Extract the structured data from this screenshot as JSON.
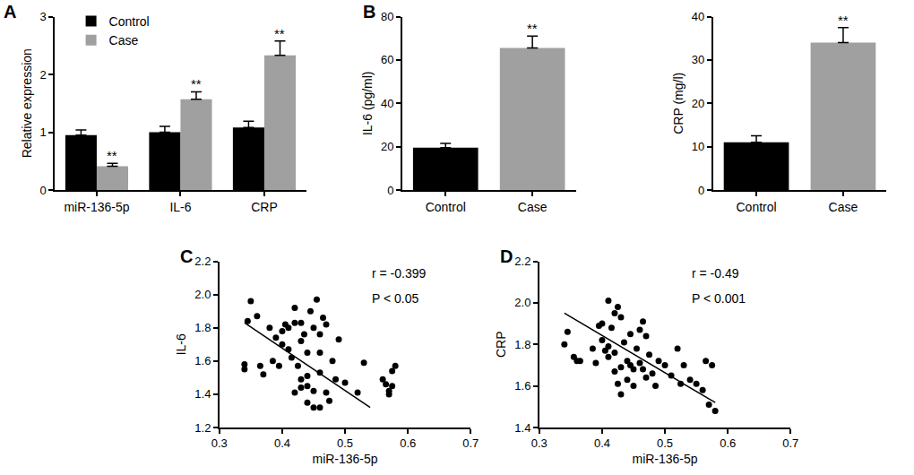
{
  "chart_data": [
    {
      "type": "bar",
      "panel": "A",
      "ylabel": "Relative expression",
      "categories": [
        "miR-136-5p",
        "IL-6",
        "CRP"
      ],
      "series": [
        {
          "name": "Control",
          "color": "#000000",
          "values": [
            0.95,
            1.0,
            1.08
          ],
          "errors": [
            0.09,
            0.1,
            0.11
          ]
        },
        {
          "name": "Case",
          "color": "#a0a0a0",
          "values": [
            0.41,
            1.57,
            2.33
          ],
          "errors": [
            0.05,
            0.13,
            0.25
          ]
        }
      ],
      "annotations": [
        {
          "category": "miR-136-5p",
          "series": "Case",
          "text": "**"
        },
        {
          "category": "IL-6",
          "series": "Case",
          "text": "**"
        },
        {
          "category": "CRP",
          "series": "Case",
          "text": "**"
        }
      ],
      "ylim": [
        0,
        3
      ],
      "yticks": [
        0,
        1,
        2,
        3
      ],
      "grid": false,
      "legend": "top left"
    },
    {
      "type": "bar",
      "panel": "B",
      "ylabel": "IL-6 (pg/ml)",
      "categories": [
        "Control",
        "Case"
      ],
      "values": [
        19.5,
        65.5
      ],
      "errors": [
        2,
        5.5
      ],
      "colors": [
        "#000000",
        "#a0a0a0"
      ],
      "annotations": [
        {
          "category": "Case",
          "text": "**"
        }
      ],
      "ylim": [
        0,
        80
      ],
      "yticks": [
        0,
        20,
        40,
        60,
        80
      ],
      "grid": false
    },
    {
      "type": "bar",
      "ylabel": "CRP (mg/l)",
      "categories": [
        "Control",
        "Case"
      ],
      "values": [
        11,
        34
      ],
      "errors": [
        1.5,
        3.5
      ],
      "colors": [
        "#000000",
        "#a0a0a0"
      ],
      "annotations": [
        {
          "category": "Case",
          "text": "**"
        }
      ],
      "ylim": [
        0,
        40
      ],
      "yticks": [
        0,
        10,
        20,
        30,
        40
      ],
      "grid": false
    },
    {
      "type": "scatter",
      "panel": "C",
      "xlabel": "miR-136-5p",
      "ylabel": "IL-6",
      "x": [
        0.34,
        0.34,
        0.345,
        0.35,
        0.36,
        0.365,
        0.37,
        0.38,
        0.385,
        0.39,
        0.395,
        0.4,
        0.4,
        0.405,
        0.41,
        0.41,
        0.415,
        0.42,
        0.42,
        0.42,
        0.425,
        0.43,
        0.43,
        0.43,
        0.435,
        0.44,
        0.44,
        0.44,
        0.445,
        0.45,
        0.45,
        0.45,
        0.455,
        0.46,
        0.46,
        0.46,
        0.46,
        0.465,
        0.47,
        0.47,
        0.475,
        0.48,
        0.485,
        0.49,
        0.5,
        0.52,
        0.53,
        0.56,
        0.565,
        0.57,
        0.57,
        0.575,
        0.575,
        0.58,
        0.44,
        0.43
      ],
      "y": [
        1.58,
        1.55,
        1.84,
        1.96,
        1.87,
        1.57,
        1.52,
        1.8,
        1.6,
        1.74,
        1.57,
        1.7,
        1.78,
        1.82,
        1.8,
        1.67,
        1.62,
        1.92,
        1.83,
        1.41,
        1.57,
        1.83,
        1.72,
        1.44,
        1.76,
        1.65,
        1.51,
        1.35,
        1.9,
        1.8,
        1.42,
        1.32,
        1.97,
        1.76,
        1.65,
        1.53,
        1.32,
        1.86,
        1.82,
        1.41,
        1.36,
        1.6,
        1.49,
        1.73,
        1.47,
        1.41,
        1.59,
        1.49,
        1.46,
        1.42,
        1.4,
        1.45,
        1.54,
        1.57,
        1.45,
        1.49
      ],
      "fit": {
        "x": [
          0.34,
          0.54
        ],
        "y": [
          1.83,
          1.32
        ]
      },
      "annotations": [
        "r = -0.399",
        "P < 0.05"
      ],
      "color": "#000000",
      "marker": "circle",
      "xlim": [
        0.3,
        0.7
      ],
      "xticks": [
        0.3,
        0.4,
        0.5,
        0.6,
        0.7
      ],
      "ylim": [
        1.2,
        2.2
      ],
      "yticks": [
        1.2,
        1.4,
        1.6,
        1.8,
        {
          "value": 2,
          "label": "2.0"
        },
        2.2
      ],
      "grid": false
    },
    {
      "type": "scatter",
      "panel": "D",
      "xlabel": "miR-136-5p",
      "ylabel": "CRP",
      "x": [
        0.34,
        0.345,
        0.355,
        0.36,
        0.365,
        0.385,
        0.39,
        0.395,
        0.4,
        0.4,
        0.405,
        0.41,
        0.41,
        0.41,
        0.415,
        0.42,
        0.42,
        0.42,
        0.425,
        0.425,
        0.43,
        0.43,
        0.43,
        0.435,
        0.44,
        0.44,
        0.445,
        0.45,
        0.45,
        0.455,
        0.46,
        0.46,
        0.465,
        0.465,
        0.47,
        0.475,
        0.48,
        0.485,
        0.49,
        0.5,
        0.51,
        0.52,
        0.525,
        0.53,
        0.54,
        0.55,
        0.56,
        0.565,
        0.57,
        0.575,
        0.58,
        0.47,
        0.445
      ],
      "y": [
        1.8,
        1.86,
        1.74,
        1.72,
        1.72,
        1.78,
        1.71,
        1.89,
        1.9,
        1.82,
        1.77,
        2.01,
        1.79,
        1.74,
        1.88,
        1.95,
        1.76,
        1.67,
        1.98,
        1.61,
        1.93,
        1.69,
        1.56,
        1.81,
        1.72,
        1.63,
        1.85,
        1.68,
        1.6,
        1.78,
        1.87,
        1.71,
        1.91,
        1.68,
        1.84,
        1.75,
        1.66,
        1.6,
        1.72,
        1.7,
        1.65,
        1.78,
        1.61,
        1.7,
        1.63,
        1.61,
        1.58,
        1.72,
        1.51,
        1.7,
        1.48,
        1.64,
        1.7
      ],
      "fit": {
        "x": [
          0.34,
          0.58
        ],
        "y": [
          1.95,
          1.52
        ]
      },
      "annotations": [
        "r = -0.49",
        "P < 0.001"
      ],
      "color": "#000000",
      "marker": "circle",
      "xlim": [
        0.3,
        0.7
      ],
      "xticks": [
        0.3,
        0.4,
        0.5,
        0.6,
        0.7
      ],
      "ylim": [
        1.4,
        2.2
      ],
      "yticks": [
        1.4,
        1.6,
        1.8,
        {
          "value": 2,
          "label": "2.0"
        },
        2.2
      ],
      "grid": false
    }
  ]
}
